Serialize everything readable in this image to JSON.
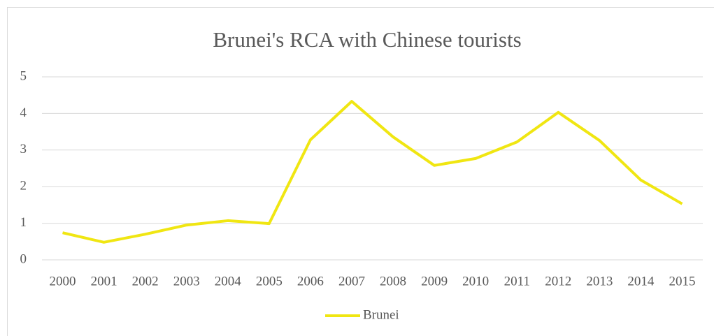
{
  "chart_data": {
    "type": "line",
    "title": "Brunei's RCA with Chinese tourists",
    "categories": [
      "2000",
      "2001",
      "2002",
      "2003",
      "2004",
      "2005",
      "2006",
      "2007",
      "2008",
      "2009",
      "2010",
      "2011",
      "2012",
      "2013",
      "2014",
      "2015"
    ],
    "series": [
      {
        "name": "Brunei",
        "color": "#f0e612",
        "values": [
          0.74,
          0.48,
          0.7,
          0.95,
          1.07,
          0.99,
          3.28,
          4.33,
          3.36,
          2.58,
          2.77,
          3.22,
          4.03,
          3.26,
          2.18,
          1.53
        ]
      }
    ],
    "ylim": [
      0,
      5
    ],
    "yticks": [
      0,
      1,
      2,
      3,
      4,
      5
    ],
    "grid": true,
    "legend": "bottom"
  }
}
